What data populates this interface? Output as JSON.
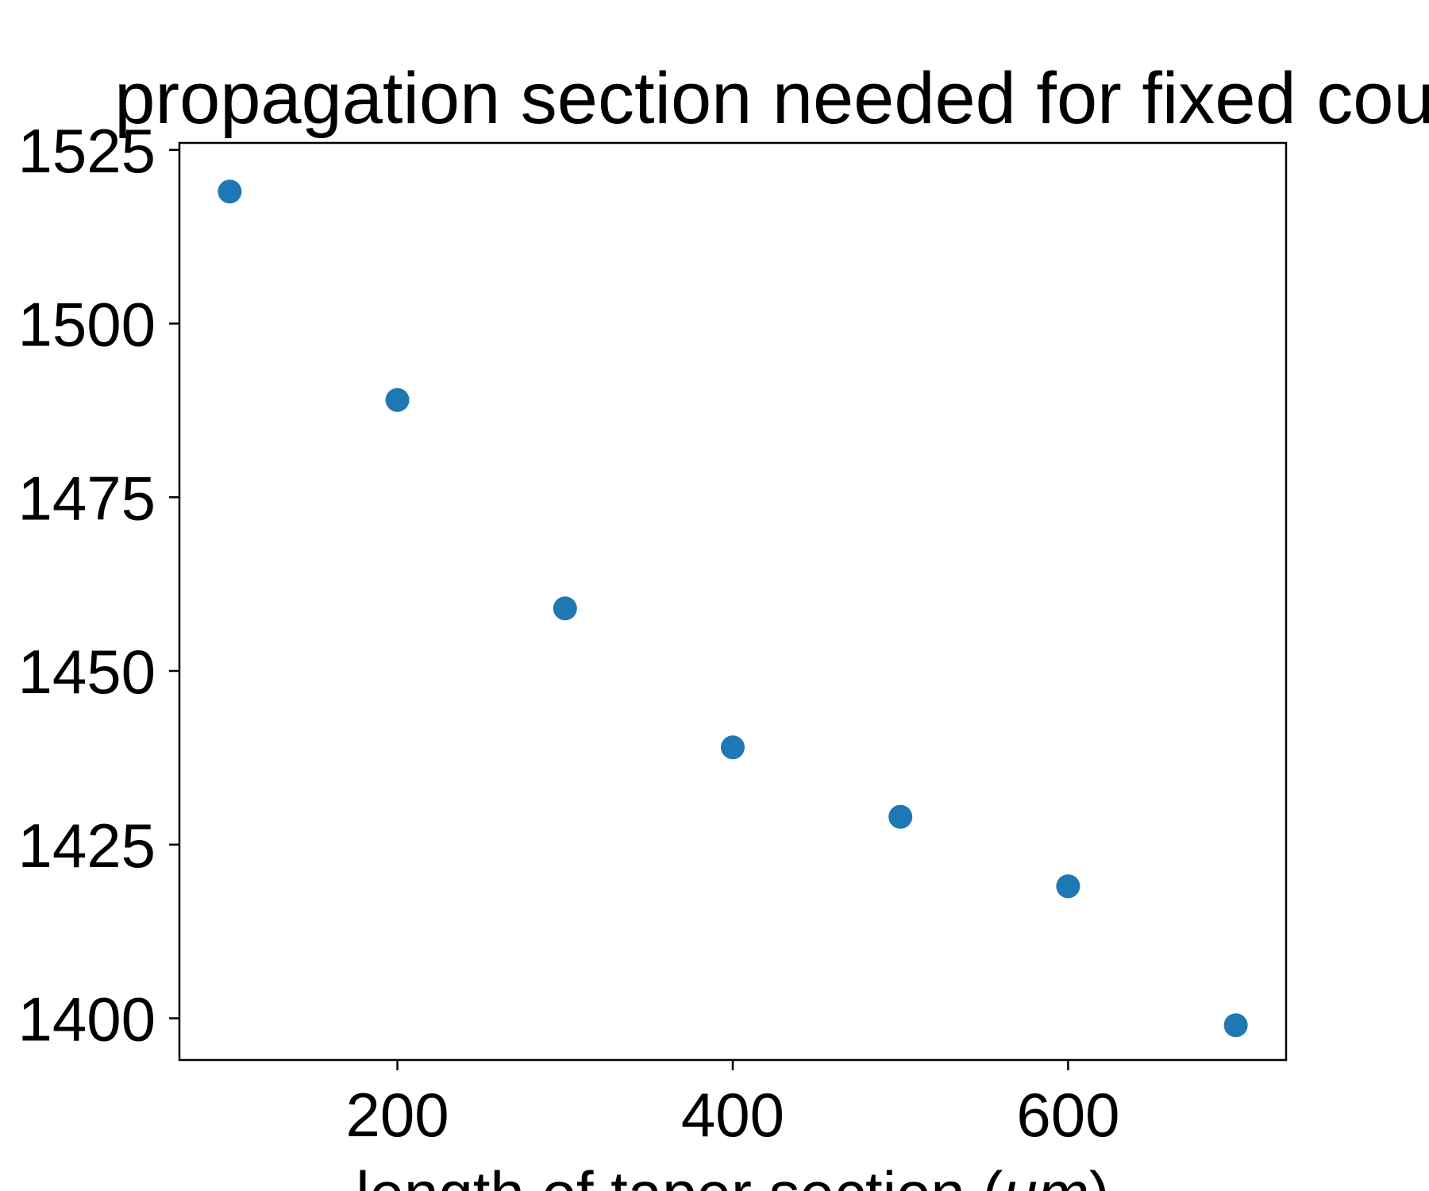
{
  "chart_data": {
    "type": "scatter",
    "title": "propagation section needed for fixed coup",
    "xlabel_prefix": "length of taper section (",
    "xlabel_unit": "um",
    "xlabel_suffix": ")",
    "ylabel": "",
    "xlim": [
      70,
      730
    ],
    "ylim": [
      1394,
      1526
    ],
    "xticks": [
      200,
      400,
      600
    ],
    "yticks": [
      1400,
      1425,
      1450,
      1475,
      1500,
      1525
    ],
    "x": [
      100,
      200,
      300,
      400,
      500,
      600,
      700
    ],
    "y": [
      1519,
      1489,
      1459,
      1439,
      1429,
      1419,
      1399
    ],
    "marker_color": "#1f77b4",
    "grid": false
  }
}
